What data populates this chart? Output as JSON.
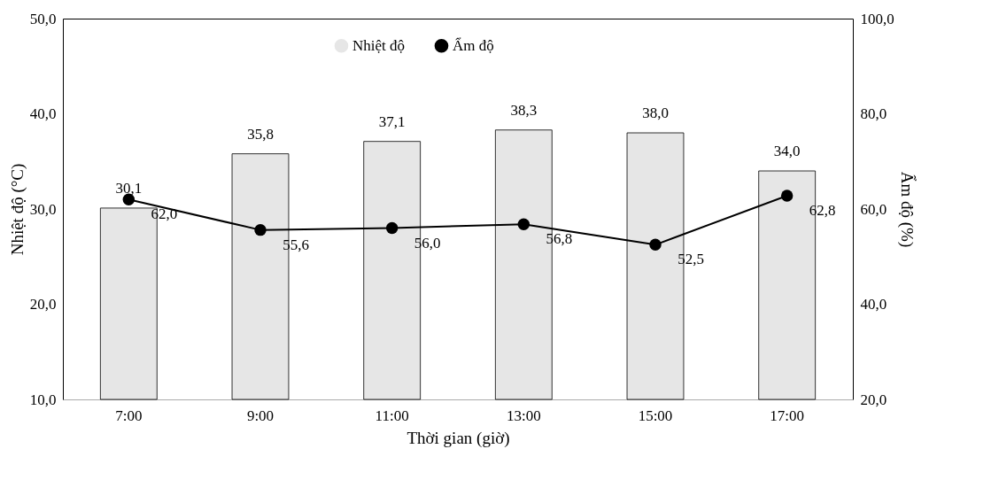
{
  "chart_data": {
    "type": "bar",
    "xlabel": "Thời gian (giờ)",
    "ylabel": "Nhiệt độ (°C)",
    "y2label": "Ẩm độ (%)",
    "categories": [
      "7:00",
      "9:00",
      "11:00",
      "13:00",
      "15:00",
      "17:00"
    ],
    "series": [
      {
        "name": "Nhiệt độ",
        "color": "#e6e6e6",
        "values": [
          30.1,
          35.8,
          37.1,
          38.3,
          38.0,
          34.0
        ],
        "value_labels": [
          "30,1",
          "35,8",
          "37,1",
          "38,3",
          "38,0",
          "34,0"
        ]
      },
      {
        "name": "Ẩm độ",
        "type": "line",
        "axis": "y2",
        "color": "#000000",
        "marker": "circle",
        "values": [
          62.0,
          55.6,
          56.0,
          56.8,
          52.5,
          62.8
        ],
        "value_labels": [
          "62,0",
          "55,6",
          "56,0",
          "56,8",
          "52,5",
          "62,8"
        ]
      }
    ],
    "ylim": [
      10,
      50
    ],
    "yticks": [
      {
        "value": 10,
        "label": "10,0"
      },
      {
        "value": 20,
        "label": "20,0"
      },
      {
        "value": 30,
        "label": "30,0"
      },
      {
        "value": 40,
        "label": "40,0"
      },
      {
        "value": 50,
        "label": "50,0"
      }
    ],
    "y2lim": [
      20,
      100
    ],
    "y2ticks": [
      {
        "value": 20,
        "label": "20,0"
      },
      {
        "value": 40,
        "label": "40,0"
      },
      {
        "value": 60,
        "label": "60,0"
      },
      {
        "value": 80,
        "label": "80,0"
      },
      {
        "value": 100,
        "label": "100,0"
      }
    ],
    "legend": "top",
    "grid": false
  }
}
